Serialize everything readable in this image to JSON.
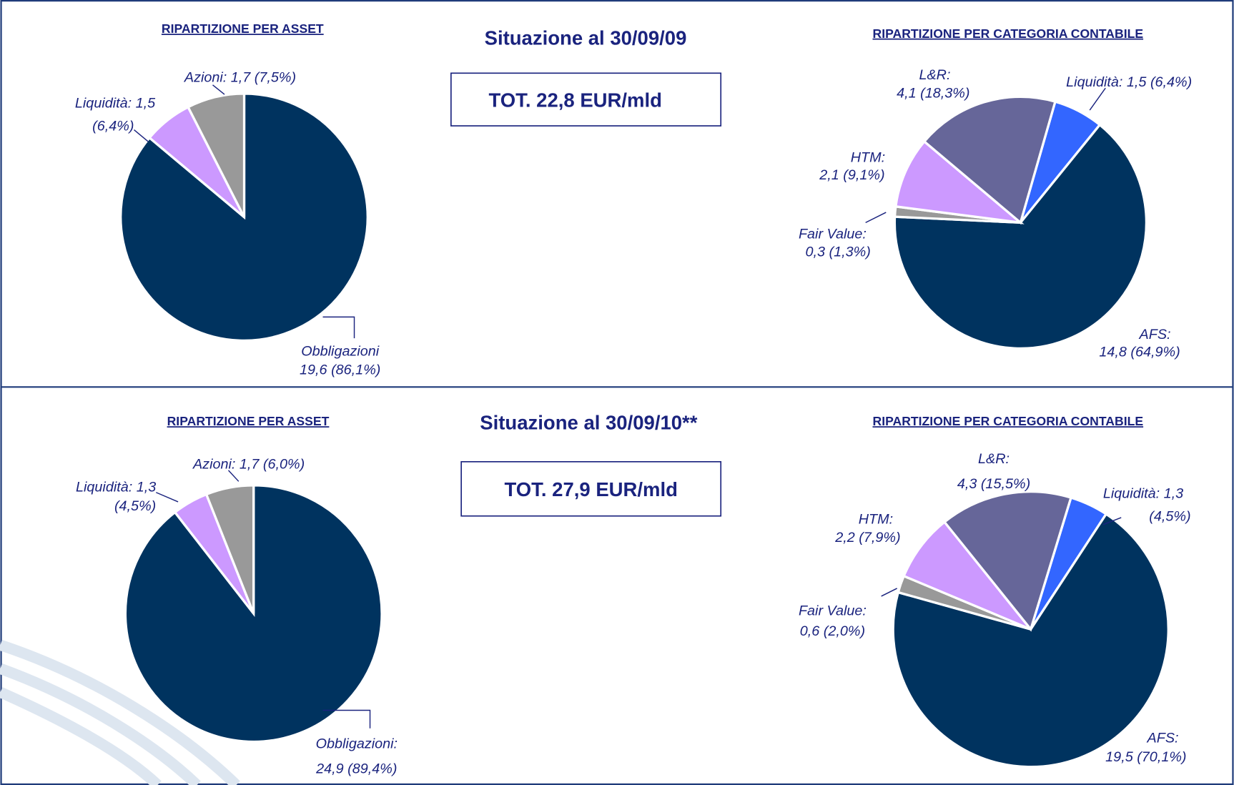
{
  "sections": [
    {
      "heading": "Situazione al 30/09/09",
      "total": "TOT. 22,8 EUR/mld"
    },
    {
      "heading": "Situazione al 30/09/10**",
      "total": "TOT. 27,9 EUR/mld"
    }
  ],
  "chart_data": [
    {
      "type": "pie",
      "title": "RIPARTIZIONE PER ASSET",
      "values": [
        86.1,
        6.4,
        7.5
      ],
      "value_labels": [
        [
          "Obbligazioni",
          "19,6 (86,1%)"
        ],
        [
          "Liquidità: 1,5",
          "(6,4%)"
        ],
        [
          "Azioni: 1,7 (7,5%)"
        ]
      ],
      "colors": [
        "#00335f",
        "#cc99ff",
        "#999999"
      ]
    },
    {
      "type": "pie",
      "title": "RIPARTIZIONE PER CATEGORIA CONTABILE",
      "values": [
        6.4,
        64.9,
        1.3,
        9.1,
        18.3
      ],
      "value_labels": [
        [
          "Liquidità: 1,5 (6,4%)"
        ],
        [
          "AFS:",
          "14,8 (64,9%)"
        ],
        [
          "Fair Value:",
          "0,3 (1,3%)"
        ],
        [
          "HTM:",
          "2,1 (9,1%)"
        ],
        [
          "L&R:",
          "4,1 (18,3%)"
        ]
      ],
      "colors": [
        "#3366ff",
        "#00335f",
        "#999999",
        "#cc99ff",
        "#666699"
      ]
    },
    {
      "type": "pie",
      "title": "RIPARTIZIONE PER ASSET",
      "values": [
        89.4,
        4.5,
        6.0
      ],
      "value_labels": [
        [
          "Obbligazioni:",
          "24,9 (89,4%)"
        ],
        [
          "Liquidità: 1,3",
          "(4,5%)"
        ],
        [
          "Azioni: 1,7 (6,0%)"
        ]
      ],
      "colors": [
        "#00335f",
        "#cc99ff",
        "#999999"
      ]
    },
    {
      "type": "pie",
      "title": "RIPARTIZIONE PER CATEGORIA CONTABILE",
      "values": [
        4.5,
        70.1,
        2.0,
        7.9,
        15.5
      ],
      "value_labels": [
        [
          "Liquidità: 1,3",
          "(4,5%)"
        ],
        [
          "AFS:",
          "19,5 (70,1%)"
        ],
        [
          "Fair Value:",
          "0,6  (2,0%)"
        ],
        [
          "HTM:",
          "2,2 (7,9%)"
        ],
        [
          "L&R:",
          "4,3 (15,5%)"
        ]
      ],
      "colors": [
        "#3366ff",
        "#00335f",
        "#999999",
        "#cc99ff",
        "#666699"
      ]
    }
  ]
}
